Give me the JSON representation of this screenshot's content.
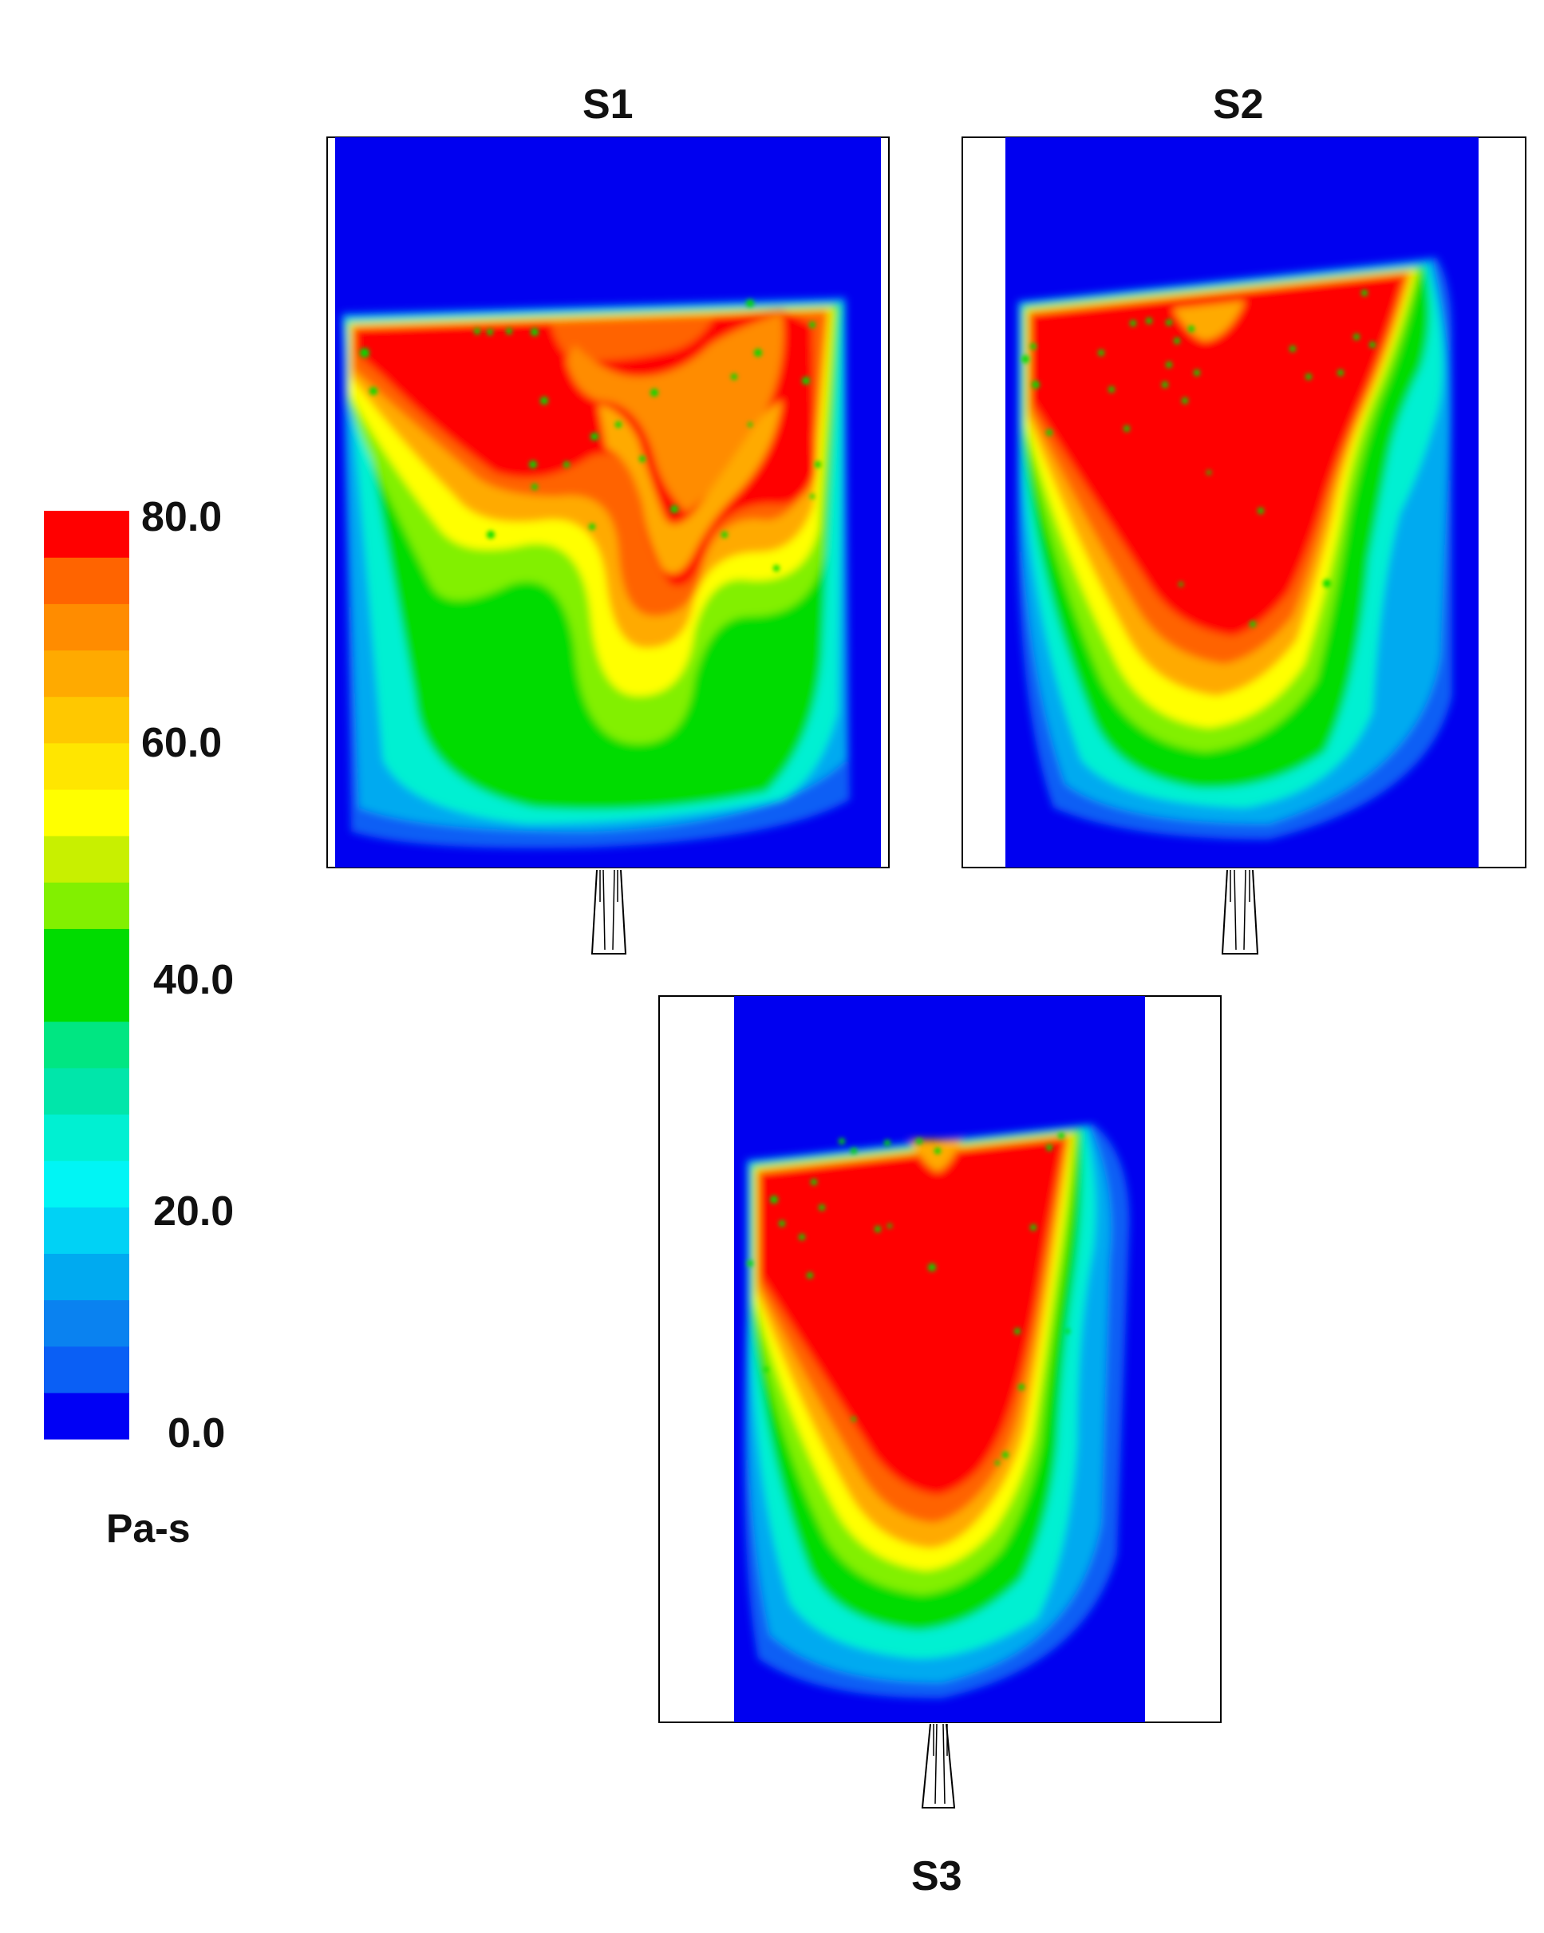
{
  "figure": {
    "panels": [
      {
        "label": "S1"
      },
      {
        "label": "S2"
      },
      {
        "label": "S3"
      }
    ],
    "colorbar": {
      "unit": "Pa-s",
      "min": 0,
      "max": 80,
      "tick_labels": [
        "80.0",
        "60.0",
        "40.0",
        "20.0",
        "0.0"
      ],
      "tick_values": [
        80,
        60,
        40,
        20,
        0
      ],
      "levels_colors_bottom_to_top": [
        "#0000f5",
        "#0a5ff5",
        "#0a82f0",
        "#00aaf0",
        "#00d2f5",
        "#00f5f5",
        "#00f0d2",
        "#00e6aa",
        "#00e682",
        "#00dc00",
        "#00dc00",
        "#82f000",
        "#c8f000",
        "#ffff00",
        "#ffe600",
        "#ffc800",
        "#ffaa00",
        "#ff8c00",
        "#ff6400",
        "#ff0000"
      ]
    }
  }
}
